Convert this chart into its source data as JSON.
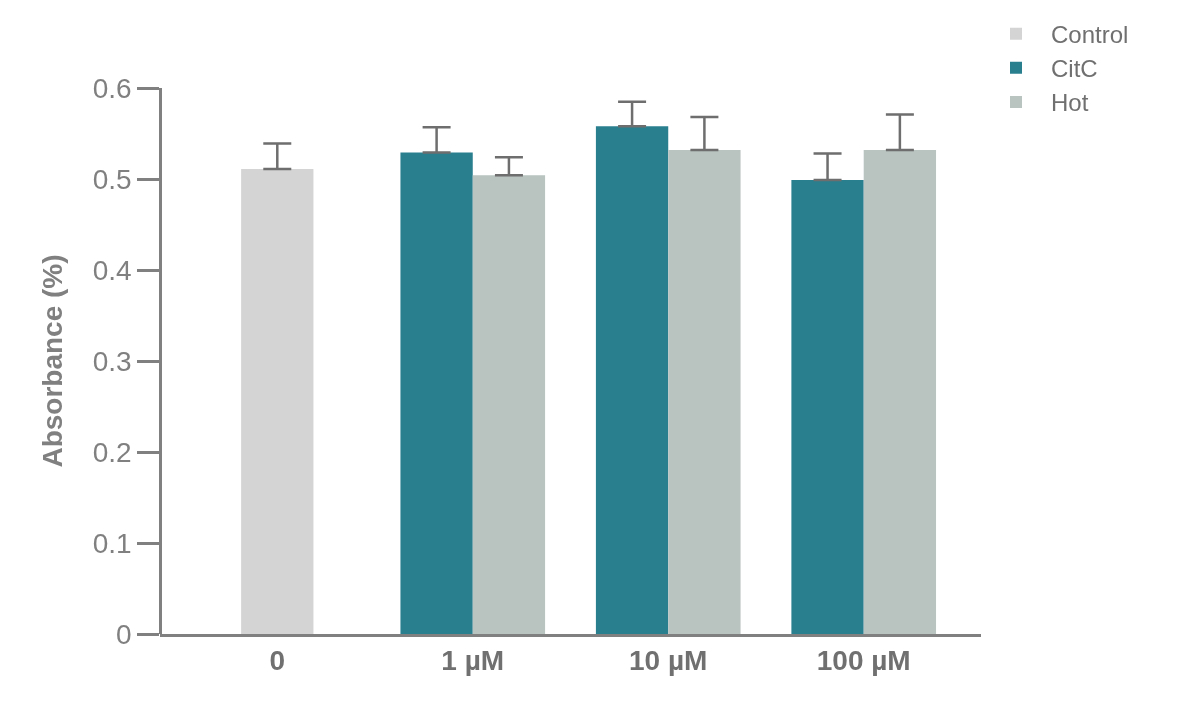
{
  "chart_data": {
    "type": "bar",
    "ylabel": "Absorbance (%)",
    "categories": [
      "0",
      "1 µM",
      "10 µM",
      "100 µM"
    ],
    "series": [
      {
        "name": "Control",
        "color": "#d4d4d4",
        "values": [
          0.511,
          null,
          null,
          null
        ],
        "errors": [
          [
            0.511,
            0.539
          ],
          null,
          null,
          null
        ]
      },
      {
        "name": "CitC",
        "color": "#2a7f8f",
        "values": [
          null,
          0.529,
          0.558,
          0.499
        ],
        "errors": [
          null,
          [
            0.529,
            0.557
          ],
          [
            0.558,
            0.585
          ],
          [
            0.499,
            0.528
          ]
        ]
      },
      {
        "name": "Hot",
        "color": "#b9c3c0",
        "values": [
          null,
          0.504,
          0.532,
          0.532
        ],
        "errors": [
          null,
          [
            0.504,
            0.524
          ],
          [
            0.532,
            0.568
          ],
          [
            0.532,
            0.571
          ]
        ]
      }
    ],
    "ylim": [
      0,
      0.6
    ],
    "yticks": [
      0,
      0.1,
      0.2,
      0.3,
      0.4,
      0.5,
      0.6
    ],
    "grid": false,
    "legend": "top right"
  }
}
